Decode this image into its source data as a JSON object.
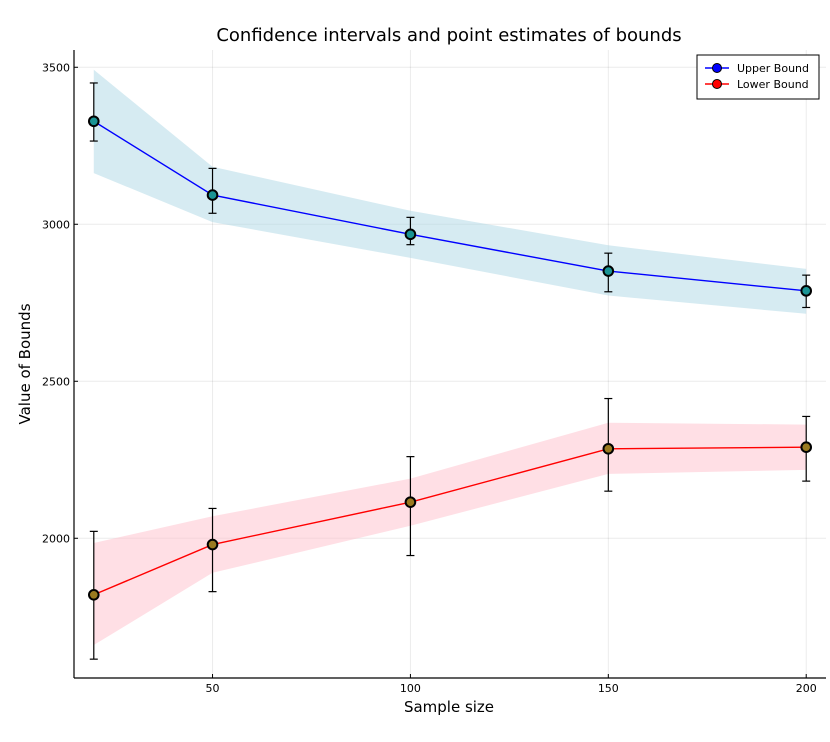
{
  "chart_data": {
    "type": "line",
    "title": "Confidence intervals and point estimates of bounds",
    "xlabel": "Sample size",
    "ylabel": "Value of Bounds",
    "xlim": [
      15,
      205
    ],
    "ylim": [
      1555,
      3555
    ],
    "xticks": [
      50,
      100,
      150,
      200
    ],
    "yticks": [
      2000,
      2500,
      3000,
      3500
    ],
    "grid": true,
    "legend_position": "top-right",
    "x": [
      20,
      50,
      100,
      150,
      200
    ],
    "series": [
      {
        "name": "Upper Bound",
        "line_color": "#0000ff",
        "legend_marker_color": "#0000ff",
        "marker_fill": "#1a9494",
        "band_color": "#add8e6",
        "values": [
          3328,
          3093,
          2968,
          2851,
          2788
        ],
        "band_lower": [
          3163,
          3007,
          2893,
          2773,
          2715
        ],
        "band_upper": [
          3492,
          3183,
          3043,
          2933,
          2858
        ],
        "err_lower": [
          3265,
          3035,
          2935,
          2785,
          2735
        ],
        "err_upper": [
          3450,
          3178,
          3022,
          2908,
          2838
        ]
      },
      {
        "name": "Lower Bound",
        "line_color": "#ff0000",
        "legend_marker_color": "#ff0000",
        "marker_fill": "#9a7a1f",
        "band_color": "#ffc0cb",
        "values": [
          1820,
          1980,
          2115,
          2285,
          2290
        ],
        "band_lower": [
          1660,
          1890,
          2040,
          2205,
          2218
        ],
        "band_upper": [
          1985,
          2070,
          2190,
          2368,
          2362
        ],
        "err_lower": [
          1615,
          1830,
          1945,
          2150,
          2182
        ],
        "err_upper": [
          2022,
          2095,
          2260,
          2445,
          2388
        ]
      }
    ]
  }
}
